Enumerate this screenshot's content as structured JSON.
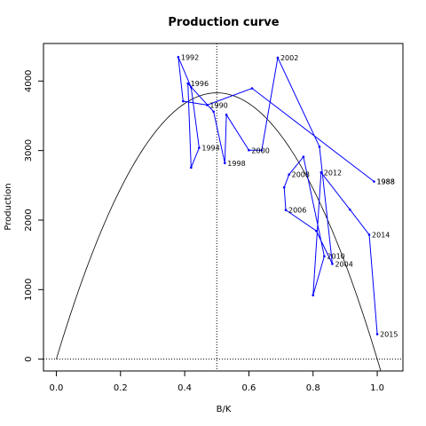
{
  "chart_data": {
    "type": "line",
    "title": "Production curve",
    "xlabel": "B/K",
    "ylabel": "Production",
    "xlim": [
      -0.04,
      1.08
    ],
    "ylim": [
      -170,
      4540
    ],
    "xticks": [
      0.0,
      0.2,
      0.4,
      0.6,
      0.8,
      1.0
    ],
    "xtick_labels": [
      "0.0",
      "0.2",
      "0.4",
      "0.6",
      "0.8",
      "1.0"
    ],
    "yticks": [
      0,
      1000,
      2000,
      3000,
      4000
    ],
    "ytick_labels": [
      "0",
      "1000",
      "2000",
      "3000",
      "4000"
    ],
    "grid": false,
    "reference_lines": {
      "vertical_x": 0.5,
      "horizontal_y": 0
    },
    "curve": {
      "r": 0.4,
      "K": 38300,
      "formula": "r*K*x*(1-x)",
      "x_range": [
        0,
        1.02
      ]
    },
    "series": [
      {
        "points": [
          {
            "year": "1988",
            "x": 0.99,
            "y": 2555
          },
          {
            "year": "",
            "x": 0.61,
            "y": 3895
          },
          {
            "year": "1990",
            "x": 0.47,
            "y": 3655
          },
          {
            "year": "",
            "x": 0.395,
            "y": 3710
          },
          {
            "year": "1992",
            "x": 0.38,
            "y": 4345
          },
          {
            "year": "",
            "x": 0.42,
            "y": 3910
          },
          {
            "year": "1994",
            "x": 0.445,
            "y": 3040
          },
          {
            "year": "",
            "x": 0.42,
            "y": 2755
          },
          {
            "year": "1996",
            "x": 0.41,
            "y": 3965
          },
          {
            "year": "",
            "x": 0.49,
            "y": 3560
          },
          {
            "year": "1998",
            "x": 0.525,
            "y": 2820
          },
          {
            "year": "",
            "x": 0.53,
            "y": 3515
          },
          {
            "year": "2000",
            "x": 0.6,
            "y": 3005
          },
          {
            "year": "",
            "x": 0.64,
            "y": 3005
          },
          {
            "year": "2002",
            "x": 0.69,
            "y": 4335
          },
          {
            "year": "",
            "x": 0.82,
            "y": 3055
          },
          {
            "year": "2004",
            "x": 0.86,
            "y": 1370
          },
          {
            "year": "",
            "x": 0.81,
            "y": 1845
          },
          {
            "year": "2006",
            "x": 0.715,
            "y": 2145
          },
          {
            "year": "",
            "x": 0.71,
            "y": 2470
          },
          {
            "year": "2008",
            "x": 0.725,
            "y": 2655
          },
          {
            "year": "",
            "x": 0.77,
            "y": 2910
          },
          {
            "year": "2010",
            "x": 0.835,
            "y": 1480
          },
          {
            "year": "",
            "x": 0.8,
            "y": 920
          },
          {
            "year": "2012",
            "x": 0.825,
            "y": 2685
          },
          {
            "year": "",
            "x": 0.915,
            "y": 2150
          },
          {
            "year": "2014",
            "x": 0.975,
            "y": 1790
          },
          {
            "year": "2015",
            "x": 1.0,
            "y": 360
          }
        ],
        "color": "#0000ff"
      }
    ],
    "curve_color": "#000000",
    "extra_labels": [
      {
        "text": "1988",
        "x": 0.99,
        "y": 2555
      }
    ]
  }
}
